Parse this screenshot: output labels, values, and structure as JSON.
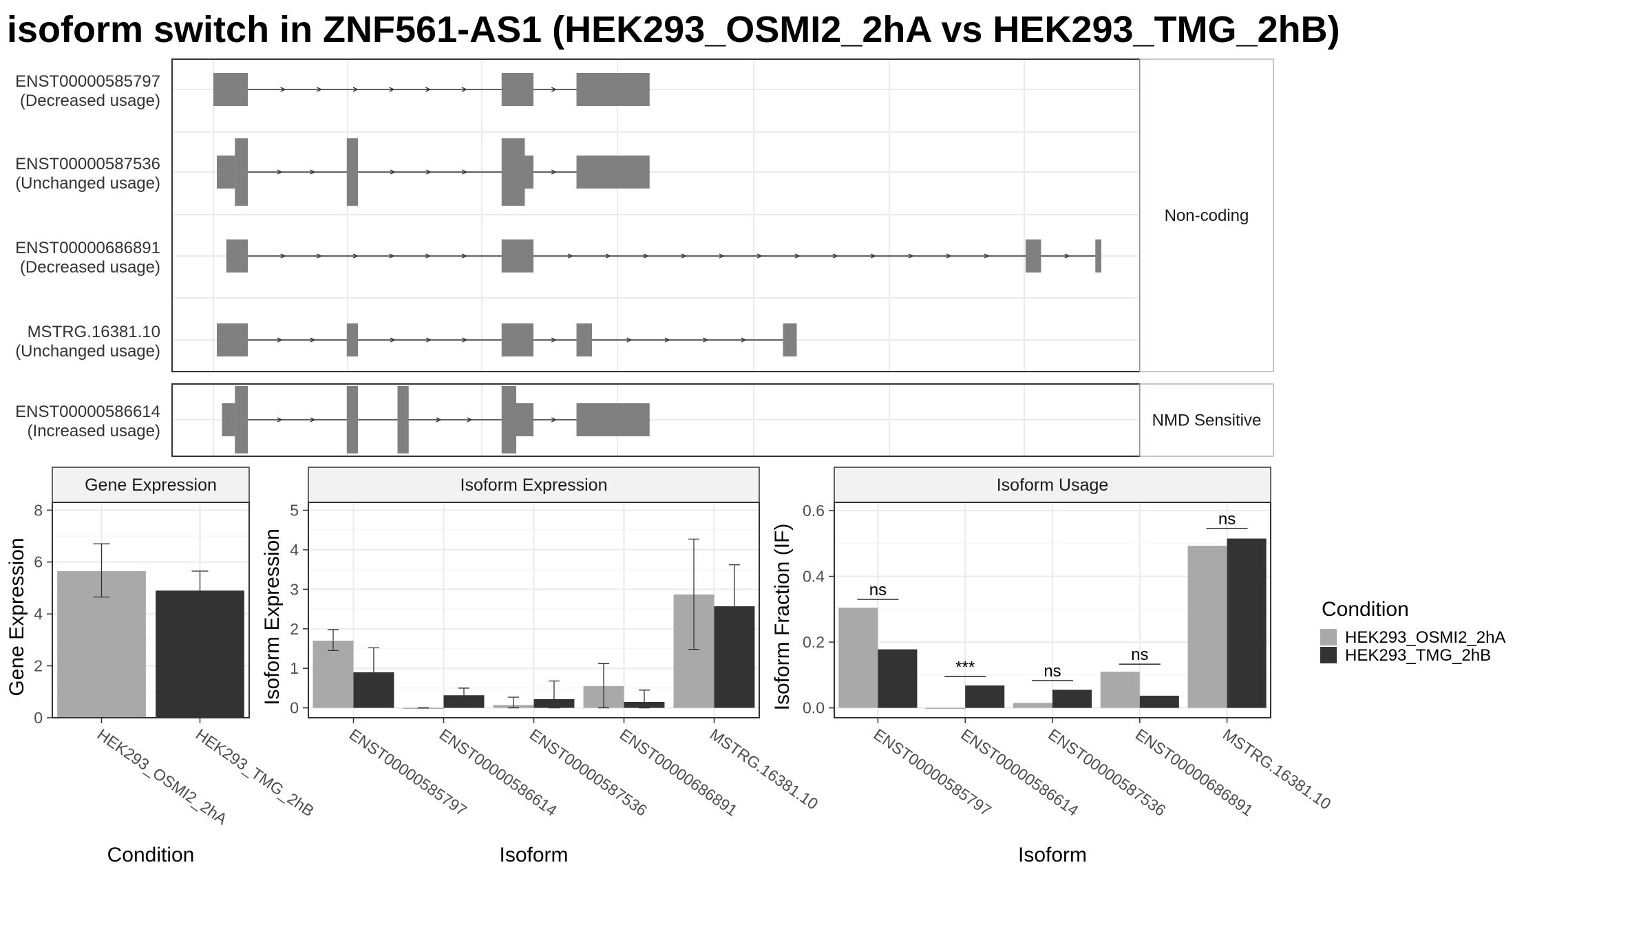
{
  "title": "isoform switch in ZNF561-AS1 (HEK293_OSMI2_2hA vs HEK293_TMG_2hB)",
  "colors": {
    "cond_a": "#a9a9a9",
    "cond_b": "#333333",
    "transcript": "#808080"
  },
  "structure": {
    "groups": [
      {
        "label": "Non-coding",
        "isoforms": [
          {
            "id": "ENST00000585797",
            "usage": "(Decreased usage)",
            "exons": [
              [
                0.0,
                0.04,
                "thin"
              ],
              [
                0.335,
                0.372,
                "thin"
              ],
              [
                0.422,
                0.507,
                "thin"
              ]
            ]
          },
          {
            "id": "ENST00000587536",
            "usage": "(Unchanged usage)",
            "exons": [
              [
                0.004,
                0.025,
                "thin"
              ],
              [
                0.025,
                0.04,
                "thick"
              ],
              [
                0.155,
                0.168,
                "thick"
              ],
              [
                0.335,
                0.362,
                "thick"
              ],
              [
                0.362,
                0.372,
                "thin"
              ],
              [
                0.422,
                0.507,
                "thin"
              ]
            ]
          },
          {
            "id": "ENST00000686891",
            "usage": "(Decreased usage)",
            "exons": [
              [
                0.015,
                0.04,
                "thin"
              ],
              [
                0.335,
                0.372,
                "thin"
              ],
              [
                0.944,
                0.962,
                "thin"
              ],
              [
                1.025,
                1.032,
                "thin"
              ]
            ]
          },
          {
            "id": "MSTRG.16381.10",
            "usage": "(Unchanged usage)",
            "exons": [
              [
                0.004,
                0.04,
                "thin"
              ],
              [
                0.155,
                0.168,
                "thin"
              ],
              [
                0.335,
                0.372,
                "thin"
              ],
              [
                0.422,
                0.44,
                "thin"
              ],
              [
                0.662,
                0.678,
                "thin"
              ]
            ]
          }
        ]
      },
      {
        "label": "NMD Sensitive",
        "isoforms": [
          {
            "id": "ENST00000586614",
            "usage": "(Increased usage)",
            "exons": [
              [
                0.01,
                0.025,
                "thin"
              ],
              [
                0.025,
                0.04,
                "thick"
              ],
              [
                0.155,
                0.168,
                "thick"
              ],
              [
                0.214,
                0.227,
                "thick"
              ],
              [
                0.335,
                0.352,
                "thick"
              ],
              [
                0.352,
                0.372,
                "thin"
              ],
              [
                0.422,
                0.507,
                "thin"
              ]
            ]
          }
        ]
      }
    ]
  },
  "chart_data": [
    {
      "type": "bar",
      "title": "Gene Expression",
      "xlabel": "Condition",
      "ylabel": "Gene Expression",
      "ylim": [
        0,
        8.3
      ],
      "yticks": [
        "0",
        "2",
        "4",
        "6",
        "8"
      ],
      "categories": [
        "HEK293_OSMI2_2hA",
        "HEK293_TMG_2hB"
      ],
      "values": [
        5.65,
        4.9
      ],
      "errors": [
        [
          4.65,
          6.7
        ],
        [
          4.2,
          5.65
        ]
      ]
    },
    {
      "type": "bar",
      "title": "Isoform Expression",
      "xlabel": "Isoform",
      "ylabel": "Isoform Expression",
      "ylim": [
        -0.25,
        5.2
      ],
      "yticks": [
        "0",
        "1",
        "2",
        "3",
        "4",
        "5"
      ],
      "categories": [
        "ENST00000585797",
        "ENST00000586614",
        "ENST00000587536",
        "ENST00000686891",
        "MSTRG.16381.10"
      ],
      "series": [
        {
          "name": "HEK293_OSMI2_2hA",
          "values": [
            1.7,
            0.0,
            0.07,
            0.55,
            2.87
          ],
          "errors": [
            [
              1.45,
              1.98
            ],
            [
              0.0,
              0.0
            ],
            [
              0.0,
              0.27
            ],
            [
              0.0,
              1.12
            ],
            [
              1.48,
              4.27
            ]
          ]
        },
        {
          "name": "HEK293_TMG_2hB",
          "values": [
            0.9,
            0.32,
            0.22,
            0.15,
            2.57
          ],
          "errors": [
            [
              0.3,
              1.52
            ],
            [
              0.15,
              0.5
            ],
            [
              0.0,
              0.68
            ],
            [
              0.0,
              0.45
            ],
            [
              1.52,
              3.62
            ]
          ]
        }
      ]
    },
    {
      "type": "bar",
      "title": "Isoform Usage",
      "xlabel": "Isoform",
      "ylabel": "Isoform Fraction (IF)",
      "ylim": [
        -0.03,
        0.625
      ],
      "yticks": [
        "0.0",
        "0.2",
        "0.4",
        "0.6"
      ],
      "categories": [
        "ENST00000585797",
        "ENST00000586614",
        "ENST00000587536",
        "ENST00000686891",
        "MSTRG.16381.10"
      ],
      "series": [
        {
          "name": "HEK293_OSMI2_2hA",
          "values": [
            0.305,
            0.0,
            0.015,
            0.11,
            0.493
          ]
        },
        {
          "name": "HEK293_TMG_2hB",
          "values": [
            0.178,
            0.068,
            0.055,
            0.037,
            0.515
          ]
        }
      ],
      "significance": [
        {
          "label": "ns",
          "y": 0.33
        },
        {
          "label": "***",
          "y": 0.095
        },
        {
          "label": "ns",
          "y": 0.083
        },
        {
          "label": "ns",
          "y": 0.133
        },
        {
          "label": "ns",
          "y": 0.545
        }
      ]
    }
  ],
  "legend": {
    "title": "Condition",
    "items": [
      "HEK293_OSMI2_2hA",
      "HEK293_TMG_2hB"
    ]
  }
}
